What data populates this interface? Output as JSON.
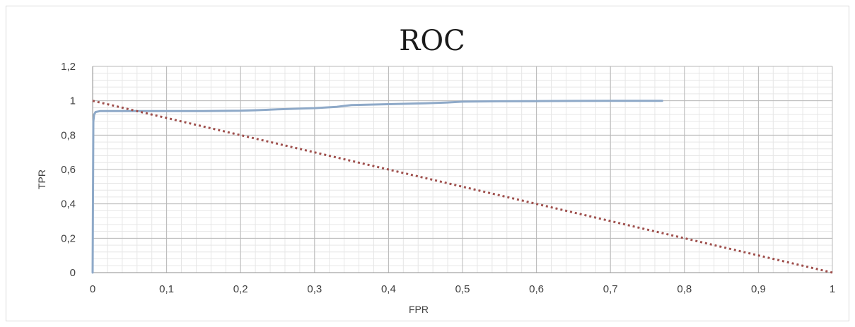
{
  "chart_data": {
    "type": "line",
    "title": "ROC",
    "xlabel": "FPR",
    "ylabel": "TPR",
    "xlim": [
      0,
      1
    ],
    "ylim": [
      0,
      1.2
    ],
    "x_ticks": [
      0,
      0.1,
      0.2,
      0.3,
      0.4,
      0.5,
      0.6,
      0.7,
      0.8,
      0.9,
      1
    ],
    "x_tick_labels": [
      "0",
      "0,1",
      "0,2",
      "0,3",
      "0,4",
      "0,5",
      "0,6",
      "0,7",
      "0,8",
      "0,9",
      "1"
    ],
    "y_ticks": [
      0,
      0.2,
      0.4,
      0.6,
      0.8,
      1,
      1.2
    ],
    "y_tick_labels": [
      "0",
      "0,2",
      "0,4",
      "0,6",
      "0,8",
      "1",
      "1,2"
    ],
    "grid": true,
    "legend": "none",
    "series": [
      {
        "color": "#8ea9c8",
        "style": "solid",
        "x": [
          0,
          0.001,
          0.002,
          0.004,
          0.01,
          0.05,
          0.1,
          0.15,
          0.2,
          0.22,
          0.25,
          0.3,
          0.33,
          0.35,
          0.4,
          0.45,
          0.48,
          0.5,
          0.55,
          0.6,
          0.65,
          0.7,
          0.77
        ],
        "y": [
          0,
          0.88,
          0.92,
          0.935,
          0.94,
          0.94,
          0.94,
          0.94,
          0.942,
          0.945,
          0.95,
          0.957,
          0.965,
          0.975,
          0.98,
          0.985,
          0.99,
          0.995,
          0.997,
          0.998,
          0.999,
          1.0,
          1.0
        ]
      },
      {
        "color": "#a0524f",
        "style": "dotted",
        "x": [
          0,
          1
        ],
        "y": [
          1,
          0
        ]
      }
    ]
  }
}
